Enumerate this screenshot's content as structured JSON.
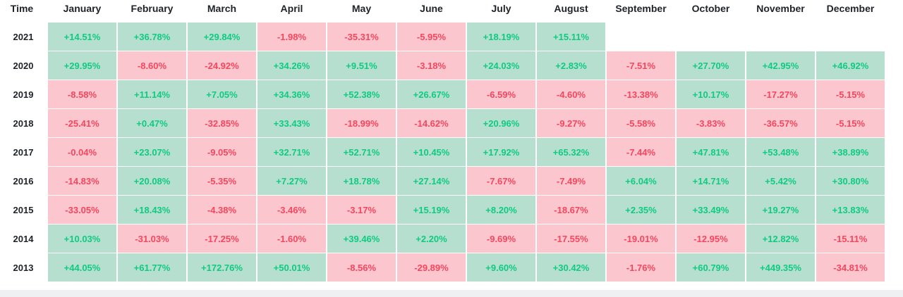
{
  "chart_data": {
    "type": "table",
    "corner_label": "Time",
    "columns": [
      "January",
      "February",
      "March",
      "April",
      "May",
      "June",
      "July",
      "August",
      "September",
      "October",
      "November",
      "December"
    ],
    "rows": [
      {
        "year": "2021",
        "values": [
          "+14.51%",
          "+36.78%",
          "+29.84%",
          "-1.98%",
          "-35.31%",
          "-5.95%",
          "+18.19%",
          "+15.11%",
          null,
          null,
          null,
          null
        ]
      },
      {
        "year": "2020",
        "values": [
          "+29.95%",
          "-8.60%",
          "-24.92%",
          "+34.26%",
          "+9.51%",
          "-3.18%",
          "+24.03%",
          "+2.83%",
          "-7.51%",
          "+27.70%",
          "+42.95%",
          "+46.92%"
        ]
      },
      {
        "year": "2019",
        "values": [
          "-8.58%",
          "+11.14%",
          "+7.05%",
          "+34.36%",
          "+52.38%",
          "+26.67%",
          "-6.59%",
          "-4.60%",
          "-13.38%",
          "+10.17%",
          "-17.27%",
          "-5.15%"
        ]
      },
      {
        "year": "2018",
        "values": [
          "-25.41%",
          "+0.47%",
          "-32.85%",
          "+33.43%",
          "-18.99%",
          "-14.62%",
          "+20.96%",
          "-9.27%",
          "-5.58%",
          "-3.83%",
          "-36.57%",
          "-5.15%"
        ]
      },
      {
        "year": "2017",
        "values": [
          "-0.04%",
          "+23.07%",
          "-9.05%",
          "+32.71%",
          "+52.71%",
          "+10.45%",
          "+17.92%",
          "+65.32%",
          "-7.44%",
          "+47.81%",
          "+53.48%",
          "+38.89%"
        ]
      },
      {
        "year": "2016",
        "values": [
          "-14.83%",
          "+20.08%",
          "-5.35%",
          "+7.27%",
          "+18.78%",
          "+27.14%",
          "-7.67%",
          "-7.49%",
          "+6.04%",
          "+14.71%",
          "+5.42%",
          "+30.80%"
        ]
      },
      {
        "year": "2015",
        "values": [
          "-33.05%",
          "+18.43%",
          "-4.38%",
          "-3.46%",
          "-3.17%",
          "+15.19%",
          "+8.20%",
          "-18.67%",
          "+2.35%",
          "+33.49%",
          "+19.27%",
          "+13.83%"
        ]
      },
      {
        "year": "2014",
        "values": [
          "+10.03%",
          "-31.03%",
          "-17.25%",
          "-1.60%",
          "+39.46%",
          "+2.20%",
          "-9.69%",
          "-17.55%",
          "-19.01%",
          "-12.95%",
          "+12.82%",
          "-15.11%"
        ]
      },
      {
        "year": "2013",
        "values": [
          "+44.05%",
          "+61.77%",
          "+172.76%",
          "+50.01%",
          "-8.56%",
          "-29.89%",
          "+9.60%",
          "+30.42%",
          "-1.76%",
          "+60.79%",
          "+449.35%",
          "-34.81%"
        ]
      }
    ],
    "colors": {
      "positive_bg": "#b7dfcf",
      "positive_text": "#0ecb81",
      "negative_bg": "#fcc6cf",
      "negative_text": "#f6465d"
    }
  }
}
